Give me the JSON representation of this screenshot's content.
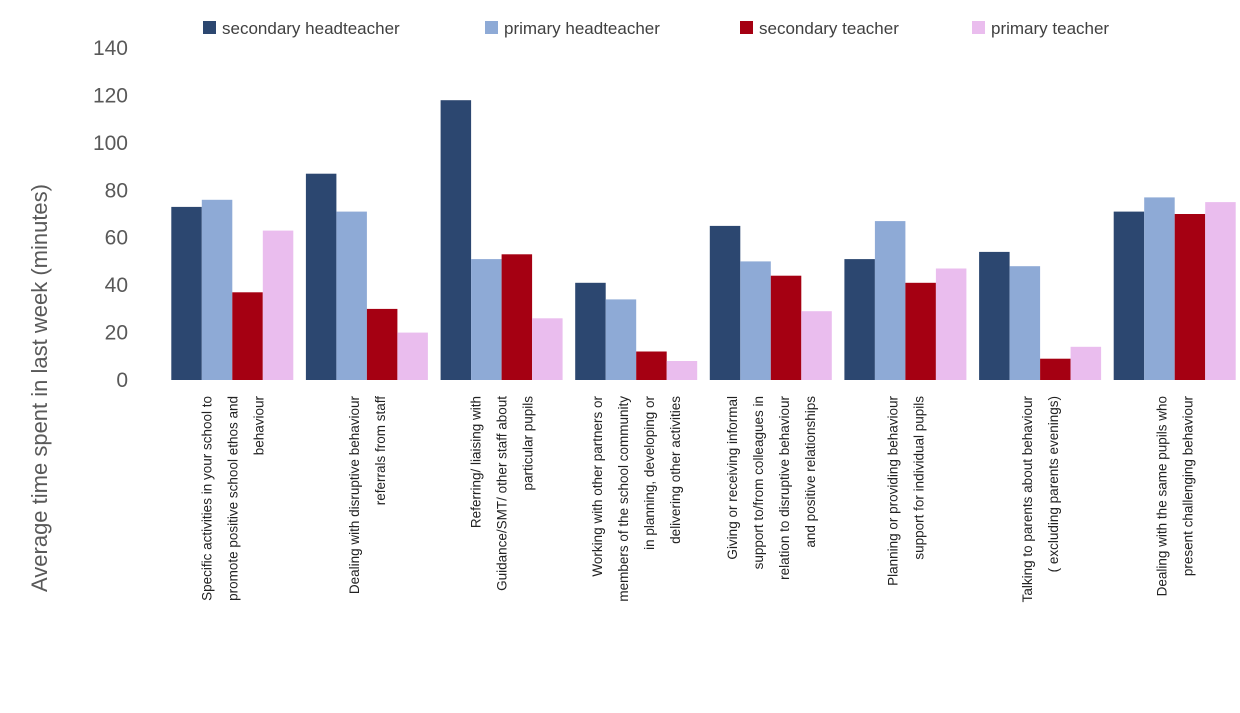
{
  "chart_data": {
    "type": "bar",
    "title": "",
    "xlabel": "",
    "ylabel": "Average time spent in last week (minutes)",
    "ylim": [
      0,
      140
    ],
    "yticks": [
      0,
      20,
      40,
      60,
      80,
      100,
      120,
      140
    ],
    "grid": false,
    "legend_position": "top",
    "categories": [
      [
        "Specific activities in your school to",
        "promote positive school ethos and",
        "behaviour"
      ],
      [
        "Dealing with disruptive behaviour",
        "referrals from staff"
      ],
      [
        "Referring/ liaising with",
        "Guidance/SMT/ other staff about",
        "particular pupils"
      ],
      [
        "Working with other partners or",
        "members of the school community",
        "in planning, developing or",
        "delivering other activities"
      ],
      [
        "Giving or receiving informal",
        "support to/from colleagues in",
        "relation to disruptive behaviour",
        "and positive relationships"
      ],
      [
        "Planning or providing behaviour",
        "support for individual pupils"
      ],
      [
        "Talking to parents about behaviour",
        "( excluding parents evenings)"
      ],
      [
        "Dealing with the same pupils who",
        "present challenging behaviour"
      ]
    ],
    "series": [
      {
        "name": "secondary headteacher",
        "color": "#2c4770",
        "values": [
          73,
          87,
          118,
          41,
          65,
          51,
          54,
          71
        ]
      },
      {
        "name": "primary headteacher",
        "color": "#8eaad6",
        "values": [
          76,
          71,
          51,
          34,
          50,
          67,
          48,
          77
        ]
      },
      {
        "name": "secondary teacher",
        "color": "#a50012",
        "values": [
          37,
          30,
          53,
          12,
          44,
          41,
          9,
          70
        ]
      },
      {
        "name": "primary teacher",
        "color": "#eabdee",
        "values": [
          63,
          20,
          26,
          8,
          29,
          47,
          14,
          75
        ]
      }
    ]
  }
}
